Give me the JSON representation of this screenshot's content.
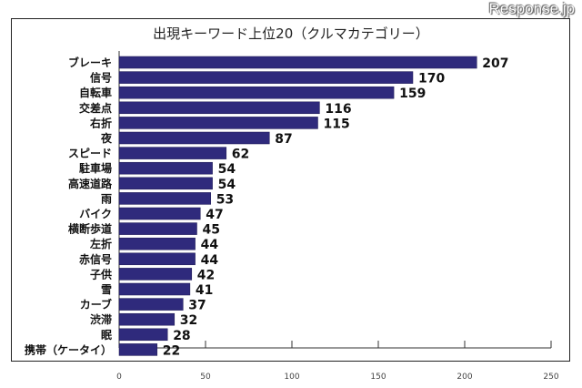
{
  "chart_data": {
    "type": "bar",
    "orientation": "horizontal",
    "title": "出現キーワード上位20（クルマカテゴリー）",
    "categories": [
      "ブレーキ",
      "信号",
      "自転車",
      "交差点",
      "右折",
      "夜",
      "スピード",
      "駐車場",
      "高速道路",
      "雨",
      "バイク",
      "横断歩道",
      "左折",
      "赤信号",
      "子供",
      "雪",
      "カーブ",
      "渋滞",
      "眠",
      "携帯（ケータイ）"
    ],
    "values": [
      207,
      170,
      159,
      116,
      115,
      87,
      62,
      54,
      54,
      53,
      47,
      45,
      44,
      44,
      42,
      41,
      37,
      32,
      28,
      22
    ],
    "xlim": [
      0,
      250
    ],
    "xticks": [
      0,
      50,
      100,
      150,
      200,
      250
    ],
    "xlabel": "",
    "ylabel": "",
    "grid": false,
    "bar_color": "#2f2a7c"
  },
  "watermark": "Response.jp"
}
